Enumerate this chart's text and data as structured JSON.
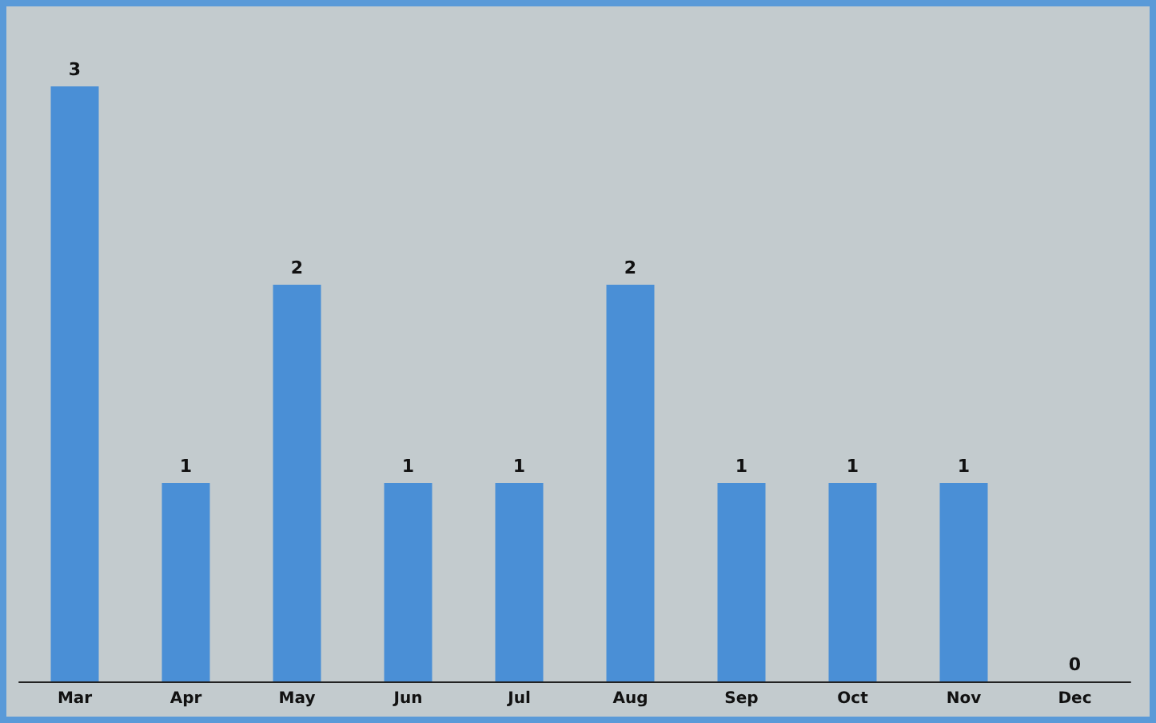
{
  "chart_data": {
    "type": "bar",
    "categories": [
      "Mar",
      "Apr",
      "May",
      "Jun",
      "Jul",
      "Aug",
      "Sep",
      "Oct",
      "Nov",
      "Dec"
    ],
    "values": [
      3,
      1,
      2,
      1,
      1,
      2,
      1,
      1,
      1,
      0
    ],
    "color": "#4a8fd6",
    "data_labels": true
  }
}
